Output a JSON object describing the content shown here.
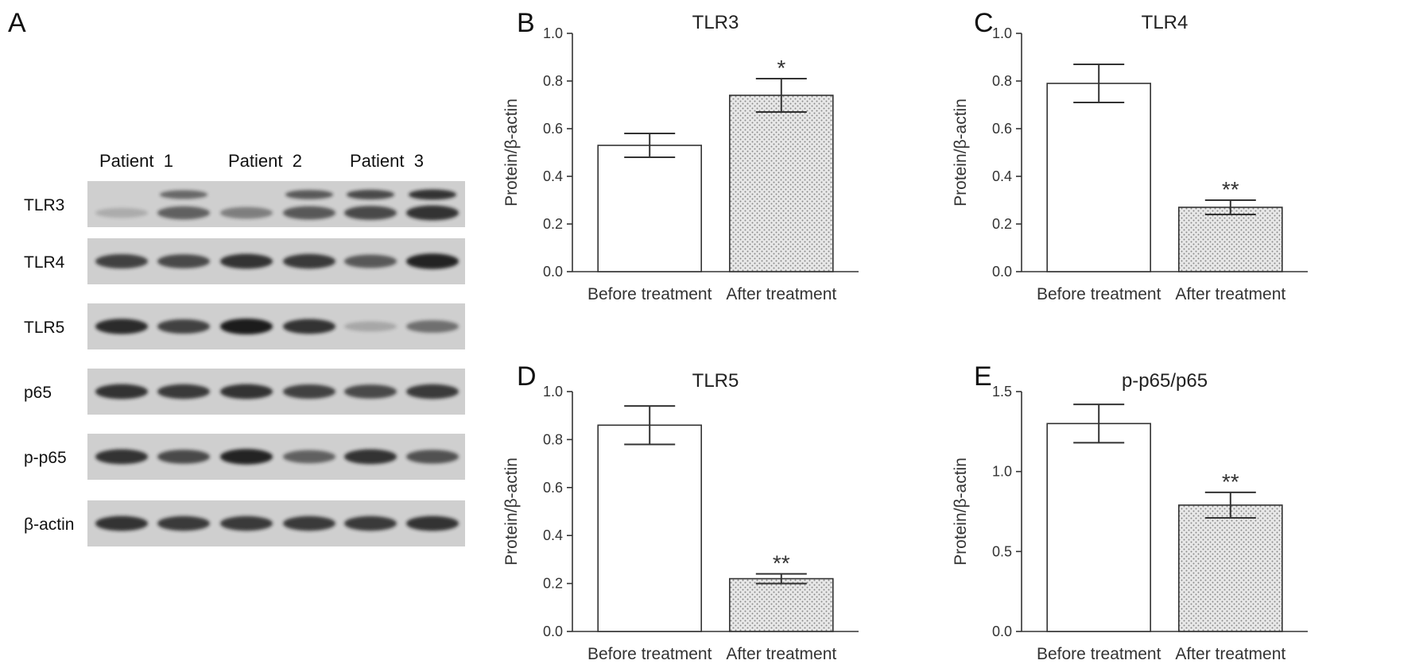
{
  "panel_a": {
    "letter": "A",
    "lanes": [
      "Patient  1",
      "Patient  2",
      "Patient  3"
    ],
    "proteins": [
      "TLR3",
      "TLR4",
      "TLR5",
      "p65",
      "p-p65",
      "β-actin"
    ],
    "band_intensity": [
      [
        0.05,
        0.55,
        0.35,
        0.6,
        0.7,
        0.85
      ],
      [
        0.75,
        0.7,
        0.85,
        0.8,
        0.6,
        0.95
      ],
      [
        0.9,
        0.75,
        1.0,
        0.85,
        0.08,
        0.45
      ],
      [
        0.85,
        0.8,
        0.85,
        0.75,
        0.7,
        0.8
      ],
      [
        0.85,
        0.7,
        0.95,
        0.55,
        0.85,
        0.65
      ],
      [
        0.85,
        0.8,
        0.8,
        0.8,
        0.8,
        0.85
      ]
    ],
    "extra_band_rows": [
      "TLR3"
    ],
    "extra_band_intensity": [
      0.0,
      0.5,
      0.0,
      0.6,
      0.7,
      0.85
    ]
  },
  "chart_data": [
    {
      "letter": "B",
      "type": "bar",
      "title": "TLR3",
      "ylabel": "Protein/β-actin",
      "categories": [
        "Before treatment",
        "After treatment"
      ],
      "values": [
        0.53,
        0.74
      ],
      "errors": [
        0.05,
        0.07
      ],
      "significance": [
        "",
        "*"
      ],
      "ylim": [
        0,
        1.0
      ],
      "yticks": [
        "0.0",
        "0.2",
        "0.4",
        "0.6",
        "0.8",
        "1.0"
      ]
    },
    {
      "letter": "C",
      "type": "bar",
      "title": "TLR4",
      "ylabel": "Protein/β-actin",
      "categories": [
        "Before treatment",
        "After treatment"
      ],
      "values": [
        0.79,
        0.27
      ],
      "errors": [
        0.08,
        0.03
      ],
      "significance": [
        "",
        "**"
      ],
      "ylim": [
        0,
        1.0
      ],
      "yticks": [
        "0.0",
        "0.2",
        "0.4",
        "0.6",
        "0.8",
        "1.0"
      ]
    },
    {
      "letter": "D",
      "type": "bar",
      "title": "TLR5",
      "ylabel": "Protein/β-actin",
      "categories": [
        "Before treatment",
        "After treatment"
      ],
      "values": [
        0.86,
        0.22
      ],
      "errors": [
        0.08,
        0.02
      ],
      "significance": [
        "",
        "**"
      ],
      "ylim": [
        0,
        1.0
      ],
      "yticks": [
        "0.0",
        "0.2",
        "0.4",
        "0.6",
        "0.8",
        "1.0"
      ]
    },
    {
      "letter": "E",
      "type": "bar",
      "title": "p-p65/p65",
      "ylabel": "Protein/β-actin",
      "categories": [
        "Before treatment",
        "After treatment"
      ],
      "values": [
        1.3,
        0.79
      ],
      "errors": [
        0.12,
        0.08
      ],
      "significance": [
        "",
        "**"
      ],
      "ylim": [
        0,
        1.5
      ],
      "yticks": [
        "0.0",
        "0.5",
        "1.0",
        "1.5"
      ]
    }
  ],
  "colors": {
    "bar_before": "#ffffff",
    "bar_after_fill": "#e6e6e6",
    "bar_after_dot": "#8a8a8a",
    "axis": "#333333",
    "blot_bg": "#cfcfcf",
    "band": "#1a1a1a"
  }
}
